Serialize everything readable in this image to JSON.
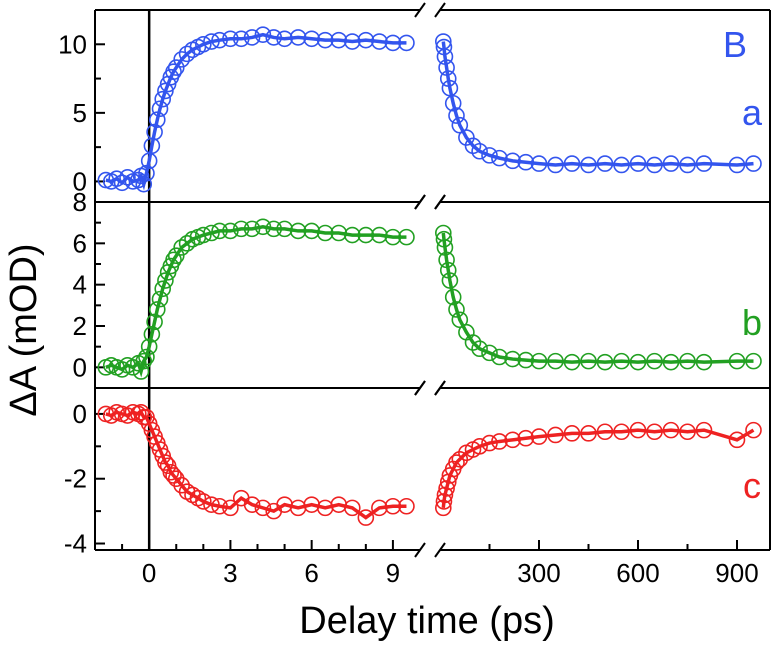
{
  "figure": {
    "xlabel": "Delay time (ps)",
    "ylabel": "ΔA (mOD)",
    "panel_letter": "B"
  },
  "chart_data": [
    {
      "type": "scatter",
      "panel_label": "a",
      "color": "#3355ee",
      "ylim": [
        -1.5,
        12.5
      ],
      "yticks": [
        0,
        5,
        10
      ],
      "x_early": [
        -1.6,
        -1.4,
        -1.2,
        -1.0,
        -0.8,
        -0.6,
        -0.4,
        -0.3,
        -0.2,
        -0.1,
        0.0,
        0.1,
        0.2,
        0.3,
        0.4,
        0.5,
        0.6,
        0.7,
        0.8,
        0.9,
        1.0,
        1.2,
        1.4,
        1.6,
        1.8,
        2.0,
        2.3,
        2.6,
        3.0,
        3.4,
        3.8,
        4.2,
        4.6,
        5.0,
        5.5,
        6.0,
        6.5,
        7.0,
        7.5,
        8.0,
        8.5,
        9.0,
        9.5
      ],
      "y_early": [
        0.1,
        0.0,
        0.2,
        -0.1,
        0.3,
        0.0,
        0.1,
        0.4,
        -0.2,
        0.6,
        1.5,
        2.6,
        3.6,
        4.5,
        5.3,
        6.0,
        6.6,
        7.1,
        7.6,
        8.0,
        8.3,
        8.9,
        9.3,
        9.6,
        9.8,
        10.0,
        10.2,
        10.3,
        10.4,
        10.4,
        10.5,
        10.7,
        10.5,
        10.4,
        10.5,
        10.4,
        10.3,
        10.3,
        10.2,
        10.3,
        10.2,
        10.1,
        10.1
      ],
      "x_late": [
        10,
        12,
        15,
        20,
        25,
        30,
        40,
        50,
        60,
        80,
        100,
        120,
        150,
        180,
        220,
        260,
        300,
        350,
        400,
        450,
        500,
        550,
        600,
        650,
        700,
        750,
        800,
        900,
        950
      ],
      "y_late": [
        10.2,
        9.8,
        9.1,
        8.3,
        7.5,
        6.8,
        5.7,
        4.8,
        4.1,
        3.2,
        2.6,
        2.2,
        1.9,
        1.7,
        1.5,
        1.4,
        1.3,
        1.2,
        1.3,
        1.2,
        1.3,
        1.2,
        1.3,
        1.2,
        1.3,
        1.2,
        1.3,
        1.2,
        1.3
      ]
    },
    {
      "type": "scatter",
      "panel_label": "b",
      "color": "#22a022",
      "ylim": [
        -1.0,
        8.0
      ],
      "yticks": [
        0,
        2,
        4,
        6,
        8
      ],
      "x_early": [
        -1.6,
        -1.4,
        -1.2,
        -1.0,
        -0.8,
        -0.6,
        -0.4,
        -0.3,
        -0.2,
        -0.1,
        0.0,
        0.1,
        0.2,
        0.3,
        0.4,
        0.5,
        0.6,
        0.7,
        0.8,
        0.9,
        1.0,
        1.2,
        1.4,
        1.6,
        1.8,
        2.0,
        2.3,
        2.6,
        3.0,
        3.4,
        3.8,
        4.2,
        4.6,
        5.0,
        5.5,
        6.0,
        6.5,
        7.0,
        7.5,
        8.0,
        8.5,
        9.0,
        9.5
      ],
      "y_early": [
        0.0,
        0.1,
        0.0,
        -0.1,
        0.1,
        0.0,
        0.2,
        -0.2,
        0.3,
        0.5,
        1.0,
        1.6,
        2.2,
        2.8,
        3.3,
        3.8,
        4.2,
        4.6,
        4.9,
        5.2,
        5.4,
        5.8,
        6.0,
        6.2,
        6.3,
        6.4,
        6.5,
        6.6,
        6.6,
        6.7,
        6.7,
        6.8,
        6.7,
        6.7,
        6.6,
        6.6,
        6.5,
        6.5,
        6.4,
        6.4,
        6.4,
        6.3,
        6.3
      ],
      "x_late": [
        10,
        12,
        15,
        20,
        25,
        30,
        40,
        50,
        60,
        80,
        100,
        120,
        150,
        180,
        220,
        260,
        300,
        350,
        400,
        450,
        500,
        550,
        600,
        650,
        700,
        750,
        800,
        900,
        950
      ],
      "y_late": [
        6.5,
        6.2,
        5.8,
        5.2,
        4.7,
        4.2,
        3.4,
        2.8,
        2.3,
        1.7,
        1.2,
        0.9,
        0.7,
        0.5,
        0.4,
        0.35,
        0.3,
        0.3,
        0.25,
        0.3,
        0.25,
        0.3,
        0.25,
        0.3,
        0.25,
        0.3,
        0.25,
        0.3,
        0.3
      ]
    },
    {
      "type": "scatter",
      "panel_label": "c",
      "color": "#ee2222",
      "ylim": [
        -4.2,
        0.8
      ],
      "yticks": [
        0,
        -2,
        -4
      ],
      "x_early": [
        -1.6,
        -1.4,
        -1.2,
        -1.0,
        -0.8,
        -0.6,
        -0.4,
        -0.3,
        -0.2,
        -0.1,
        0.0,
        0.1,
        0.2,
        0.3,
        0.4,
        0.5,
        0.6,
        0.7,
        0.8,
        0.9,
        1.0,
        1.2,
        1.4,
        1.6,
        1.8,
        2.0,
        2.3,
        2.6,
        3.0,
        3.4,
        3.8,
        4.2,
        4.6,
        5.0,
        5.5,
        6.0,
        6.5,
        7.0,
        7.5,
        8.0,
        8.5,
        9.0,
        9.5
      ],
      "y_early": [
        0.0,
        -0.05,
        0.05,
        0.0,
        -0.05,
        0.05,
        0.0,
        0.05,
        -0.1,
        -0.1,
        -0.3,
        -0.5,
        -0.7,
        -0.9,
        -1.1,
        -1.3,
        -1.5,
        -1.6,
        -1.8,
        -1.9,
        -2.0,
        -2.2,
        -2.4,
        -2.5,
        -2.6,
        -2.7,
        -2.8,
        -2.85,
        -2.9,
        -2.6,
        -2.8,
        -2.9,
        -3.0,
        -2.8,
        -2.9,
        -2.8,
        -2.9,
        -2.8,
        -2.9,
        -3.2,
        -2.9,
        -2.85,
        -2.85
      ],
      "x_late": [
        10,
        12,
        15,
        20,
        25,
        30,
        40,
        50,
        60,
        80,
        100,
        120,
        150,
        180,
        220,
        260,
        300,
        350,
        400,
        450,
        500,
        550,
        600,
        650,
        700,
        750,
        800,
        900,
        950
      ],
      "y_late": [
        -2.9,
        -2.7,
        -2.5,
        -2.3,
        -2.1,
        -1.9,
        -1.7,
        -1.5,
        -1.4,
        -1.2,
        -1.1,
        -1.0,
        -0.9,
        -0.85,
        -0.8,
        -0.75,
        -0.7,
        -0.65,
        -0.6,
        -0.6,
        -0.55,
        -0.55,
        -0.5,
        -0.55,
        -0.5,
        -0.55,
        -0.5,
        -0.8,
        -0.5
      ]
    }
  ],
  "x_axis": {
    "early_ticks": [
      0,
      3,
      6,
      9
    ],
    "late_ticks": [
      300,
      600,
      900
    ],
    "early_range": [
      -2,
      10
    ],
    "late_range": [
      0,
      1000
    ]
  }
}
